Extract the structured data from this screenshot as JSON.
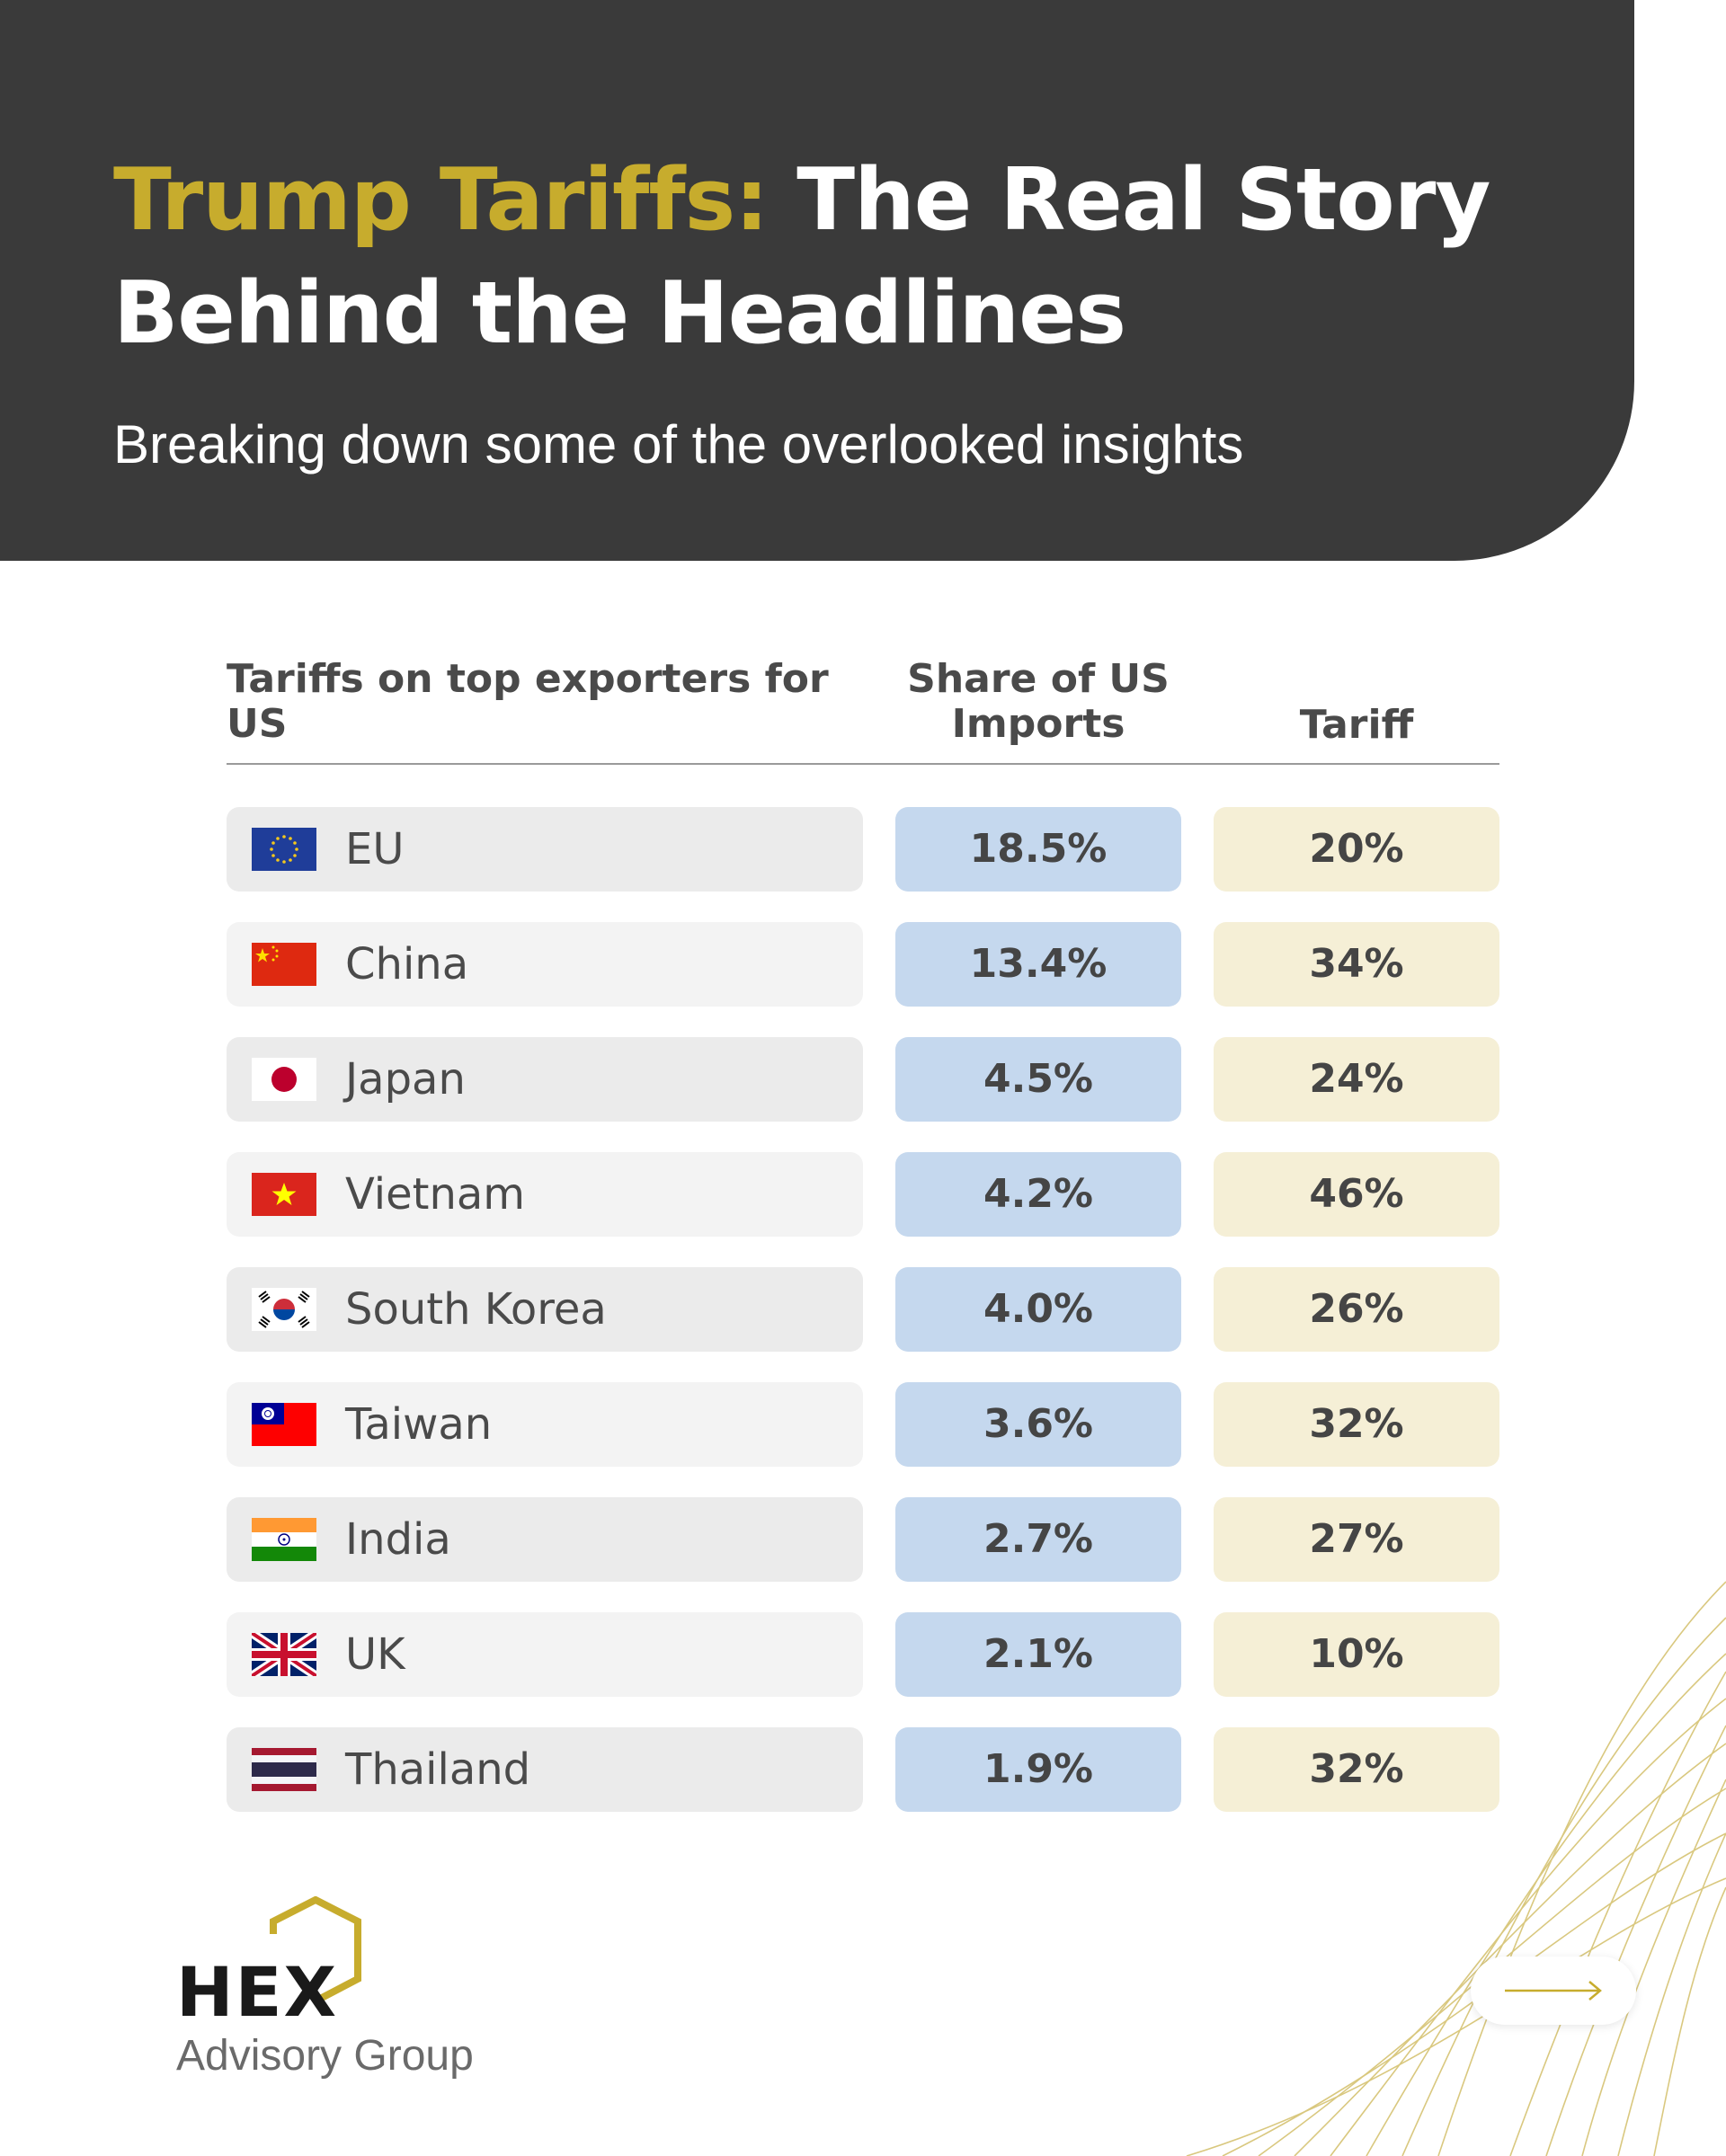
{
  "header": {
    "title_accent": "Trump Tariffs:",
    "title_rest": " The Real Story Behind the Headlines",
    "subtitle": "Breaking down some of the overlooked insights"
  },
  "table": {
    "headers": {
      "country": "Tariffs on top exporters for US",
      "share": "Share of US Imports",
      "tariff": "Tariff"
    },
    "rows": [
      {
        "country": "EU",
        "flag": "eu-flag-icon",
        "share": "18.5%",
        "tariff": "20%"
      },
      {
        "country": "China",
        "flag": "china-flag-icon",
        "share": "13.4%",
        "tariff": "34%"
      },
      {
        "country": "Japan",
        "flag": "japan-flag-icon",
        "share": "4.5%",
        "tariff": "24%"
      },
      {
        "country": "Vietnam",
        "flag": "vietnam-flag-icon",
        "share": "4.2%",
        "tariff": "46%"
      },
      {
        "country": "South Korea",
        "flag": "south-korea-flag-icon",
        "share": "4.0%",
        "tariff": "26%"
      },
      {
        "country": "Taiwan",
        "flag": "taiwan-flag-icon",
        "share": "3.6%",
        "tariff": "32%"
      },
      {
        "country": "India",
        "flag": "india-flag-icon",
        "share": "2.7%",
        "tariff": "27%"
      },
      {
        "country": "UK",
        "flag": "uk-flag-icon",
        "share": "2.1%",
        "tariff": "10%"
      },
      {
        "country": "Thailand",
        "flag": "thailand-flag-icon",
        "share": "1.9%",
        "tariff": "32%"
      }
    ]
  },
  "logo": {
    "word": "HEX",
    "subtitle": "Advisory Group"
  },
  "colors": {
    "header_bg": "#3a3a3a",
    "accent_gold": "#c7ac2d",
    "share_cell": "#c5d8ee",
    "tariff_cell": "#f5efd6",
    "country_cell": "#ebebeb"
  },
  "icons": {
    "next": "arrow-right-icon",
    "logo_mark": "hexagon-outline-icon"
  }
}
